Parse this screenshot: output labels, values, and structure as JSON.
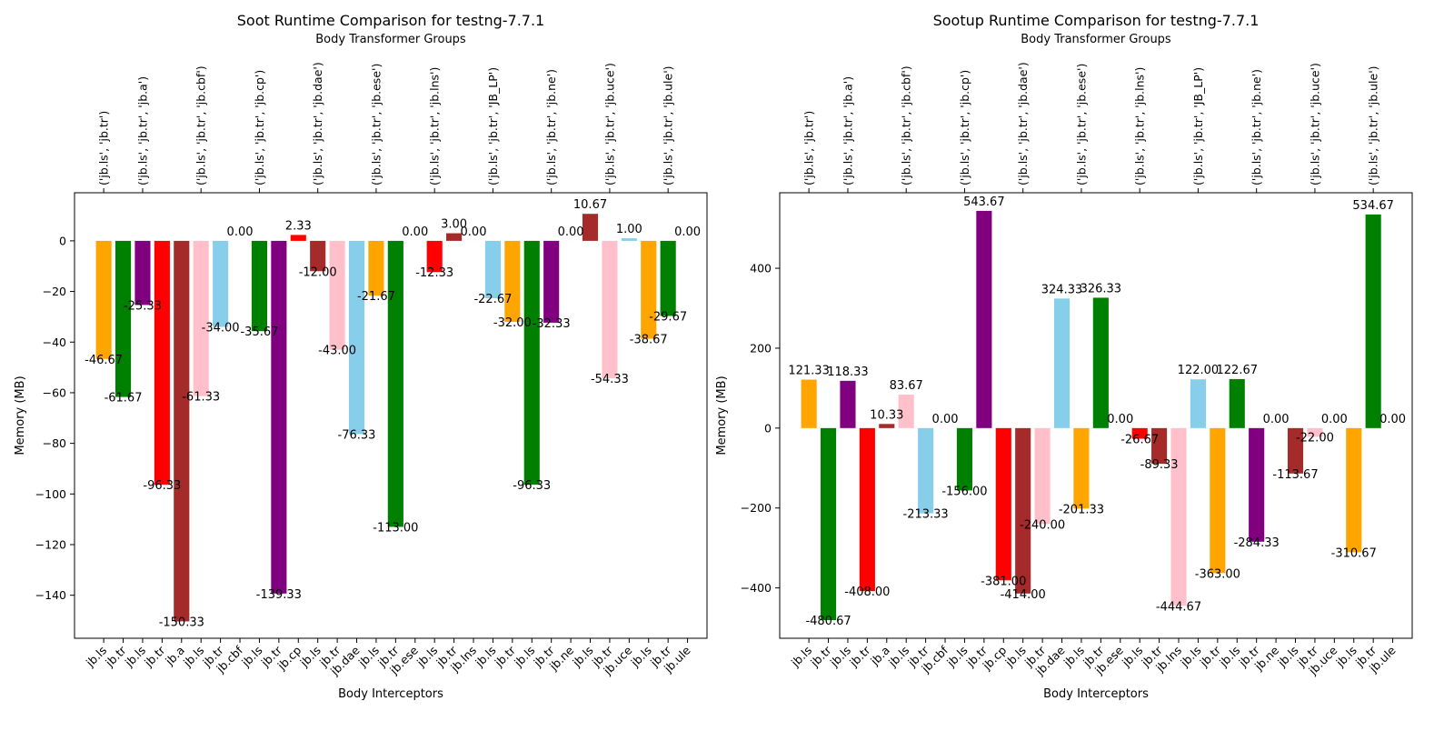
{
  "chart_data": [
    {
      "type": "bar",
      "title": "Soot Runtime Comparison for testng-7.7.1",
      "top_axis_label": "Body Transformer Groups",
      "xlabel": "Body Interceptors",
      "ylabel": "Memory (MB)",
      "ylim": [
        -157,
        19
      ],
      "yticks": [
        -140,
        -120,
        -100,
        -80,
        -60,
        -40,
        -20,
        0
      ],
      "ytick_labels": [
        "−140",
        "−120",
        "−100",
        "−80",
        "−60",
        "−40",
        "−20",
        "0"
      ],
      "grid": false,
      "groups": [
        "('jb.ls', 'jb.tr')",
        "('jb.ls', 'jb.tr', 'jb.a')",
        "('jb.ls', 'jb.tr', 'jb.cbf')",
        "('jb.ls', 'jb.tr', 'jb.cp')",
        "('jb.ls', 'jb.tr', 'jb.dae')",
        "('jb.ls', 'jb.tr', 'jb.ese')",
        "('jb.ls', 'jb.tr', 'jb.lns')",
        "('jb.ls', 'jb.tr', 'JB_LP')",
        "('jb.ls', 'jb.tr', 'jb.ne')",
        "('jb.ls', 'jb.tr', 'jb.uce')",
        "('jb.ls', 'jb.tr', 'jb.ule')"
      ],
      "group_start_index": [
        0,
        2,
        5,
        8,
        11,
        14,
        17,
        20,
        23,
        26,
        29
      ],
      "categories": [
        "jb.ls",
        "jb.tr",
        "jb.ls",
        "jb.tr",
        "jb.a",
        "jb.ls",
        "jb.tr",
        "jb.cbf",
        "jb.ls",
        "jb.tr",
        "jb.cp",
        "jb.ls",
        "jb.tr",
        "jb.dae",
        "jb.ls",
        "jb.tr",
        "jb.ese",
        "jb.ls",
        "jb.tr",
        "jb.lns",
        "jb.ls",
        "jb.tr",
        "jb.ls",
        "jb.tr",
        "jb.ne",
        "jb.ls",
        "jb.tr",
        "jb.uce",
        "jb.ls",
        "jb.tr",
        "jb.ule"
      ],
      "values": [
        -46.67,
        -61.67,
        -25.33,
        -96.33,
        -150.33,
        -61.33,
        -34.0,
        0.0,
        -35.67,
        -139.33,
        2.33,
        -12.0,
        -43.0,
        -76.33,
        -21.67,
        -113.0,
        0.0,
        -12.33,
        3.0,
        0.0,
        -22.67,
        -32.0,
        -96.33,
        -32.33,
        0.0,
        10.67,
        -54.33,
        1.0,
        -38.67,
        -29.67,
        0.0
      ],
      "value_labels": [
        "-46.67",
        "-61.67",
        "-25.33",
        "-96.33",
        "-150.33",
        "-61.33",
        "-34.00",
        "0.00",
        "-35.67",
        "-139.33",
        "2.33",
        "-12.00",
        "-43.00",
        "-76.33",
        "-21.67",
        "-113.00",
        "0.00",
        "-12.33",
        "3.00",
        "0.00",
        "-22.67",
        "-32.00",
        "-96.33",
        "-32.33",
        "0.00",
        "10.67",
        "-54.33",
        "1.00",
        "-38.67",
        "-29.67",
        "0.00"
      ],
      "bar_colors": [
        "#ffa500",
        "#008000",
        "#800080",
        "#ff0000",
        "#a52a2a",
        "#ffc0cb",
        "#87ceeb",
        "#87ceeb",
        "#008000",
        "#800080",
        "#ff0000",
        "#a52a2a",
        "#ffc0cb",
        "#87ceeb",
        "#ffa500",
        "#008000",
        "#008000",
        "#ff0000",
        "#a52a2a",
        "#a52a2a",
        "#87ceeb",
        "#ffa500",
        "#008000",
        "#800080",
        "#800080",
        "#a52a2a",
        "#ffc0cb",
        "#87ceeb",
        "#ffa500",
        "#008000",
        "#008000"
      ]
    },
    {
      "type": "bar",
      "title": "Sootup Runtime Comparison for testng-7.7.1",
      "top_axis_label": "Body Transformer Groups",
      "xlabel": "Body Interceptors",
      "ylabel": "Memory (MB)",
      "ylim": [
        -526,
        589
      ],
      "yticks": [
        -400,
        -200,
        0,
        200,
        400
      ],
      "ytick_labels": [
        "−400",
        "−200",
        "0",
        "200",
        "400"
      ],
      "grid": false,
      "groups": [
        "('jb.ls', 'jb.tr')",
        "('jb.ls', 'jb.tr', 'jb.a')",
        "('jb.ls', 'jb.tr', 'jb.cbf')",
        "('jb.ls', 'jb.tr', 'jb.cp')",
        "('jb.ls', 'jb.tr', 'jb.dae')",
        "('jb.ls', 'jb.tr', 'jb.ese')",
        "('jb.ls', 'jb.tr', 'jb.lns')",
        "('jb.ls', 'jb.tr', 'JB_LP')",
        "('jb.ls', 'jb.tr', 'jb.ne')",
        "('jb.ls', 'jb.tr', 'jb.uce')",
        "('jb.ls', 'jb.tr', 'jb.ule')"
      ],
      "group_start_index": [
        0,
        2,
        5,
        8,
        11,
        14,
        17,
        20,
        23,
        26,
        29
      ],
      "categories": [
        "jb.ls",
        "jb.tr",
        "jb.ls",
        "jb.tr",
        "jb.a",
        "jb.ls",
        "jb.tr",
        "jb.cbf",
        "jb.ls",
        "jb.tr",
        "jb.cp",
        "jb.ls",
        "jb.tr",
        "jb.dae",
        "jb.ls",
        "jb.tr",
        "jb.ese",
        "jb.ls",
        "jb.tr",
        "jb.lns",
        "jb.ls",
        "jb.tr",
        "jb.ls",
        "jb.tr",
        "jb.ne",
        "jb.ls",
        "jb.tr",
        "jb.uce",
        "jb.ls",
        "jb.tr",
        "jb.ule"
      ],
      "values": [
        121.33,
        -480.67,
        118.33,
        -408.0,
        10.33,
        83.67,
        -213.33,
        0.0,
        -156.0,
        543.67,
        -381.0,
        -414.0,
        -240.0,
        324.33,
        -201.33,
        326.33,
        0.0,
        -26.67,
        -89.33,
        -444.67,
        122.0,
        -363.0,
        122.67,
        -284.33,
        0.0,
        -113.67,
        -22.0,
        0.0,
        -310.67,
        534.67,
        0.0
      ],
      "value_labels": [
        "121.33",
        "-480.67",
        "118.33",
        "-408.00",
        "10.33",
        "83.67",
        "-213.33",
        "0.00",
        "-156.00",
        "543.67",
        "-381.00",
        "-414.00",
        "-240.00",
        "324.33",
        "-201.33",
        "326.33",
        "0.00",
        "-26.67",
        "-89.33",
        "-444.67",
        "122.00",
        "-363.00",
        "122.67",
        "-284.33",
        "0.00",
        "-113.67",
        "-22.00",
        "0.00",
        "-310.67",
        "534.67",
        "0.00"
      ],
      "bar_colors": [
        "#ffa500",
        "#008000",
        "#800080",
        "#ff0000",
        "#a52a2a",
        "#ffc0cb",
        "#87ceeb",
        "#87ceeb",
        "#008000",
        "#800080",
        "#ff0000",
        "#a52a2a",
        "#ffc0cb",
        "#87ceeb",
        "#ffa500",
        "#008000",
        "#008000",
        "#ff0000",
        "#a52a2a",
        "#ffc0cb",
        "#87ceeb",
        "#ffa500",
        "#008000",
        "#800080",
        "#800080",
        "#a52a2a",
        "#ffc0cb",
        "#87ceeb",
        "#ffa500",
        "#008000",
        "#008000"
      ]
    }
  ]
}
